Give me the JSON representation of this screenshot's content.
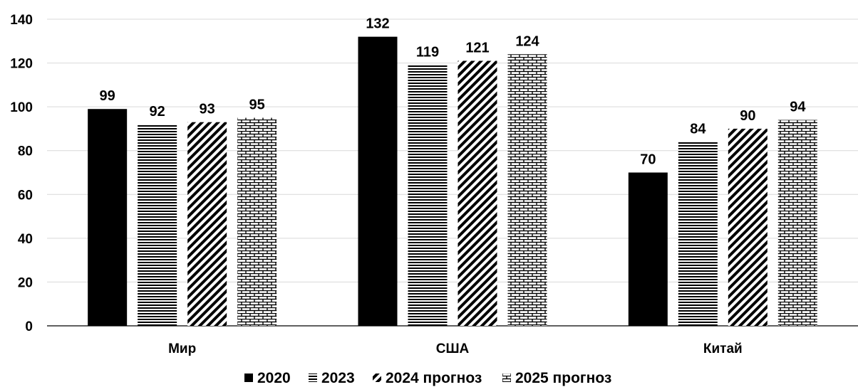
{
  "chart_data": {
    "type": "bar",
    "title": "",
    "xlabel": "",
    "ylabel": "",
    "categories": [
      "Мир",
      "США",
      "Китай"
    ],
    "series": [
      {
        "name": "2020",
        "pattern": "solid",
        "values": [
          99,
          132,
          70
        ]
      },
      {
        "name": "2023",
        "pattern": "horizontal-lines",
        "values": [
          92,
          119,
          84
        ]
      },
      {
        "name": "2024 прогноз",
        "pattern": "diagonal-lines",
        "values": [
          93,
          121,
          90
        ]
      },
      {
        "name": "2025 прогноз",
        "pattern": "brick",
        "values": [
          95,
          124,
          94
        ]
      }
    ],
    "ylim": [
      0,
      140
    ],
    "yticks": [
      0,
      20,
      40,
      60,
      80,
      100,
      120,
      140
    ],
    "grid": true,
    "legend": "bottom-center",
    "colors": {
      "bars": "#000000",
      "grid": "#d9d9d9",
      "background": "#ffffff"
    }
  }
}
